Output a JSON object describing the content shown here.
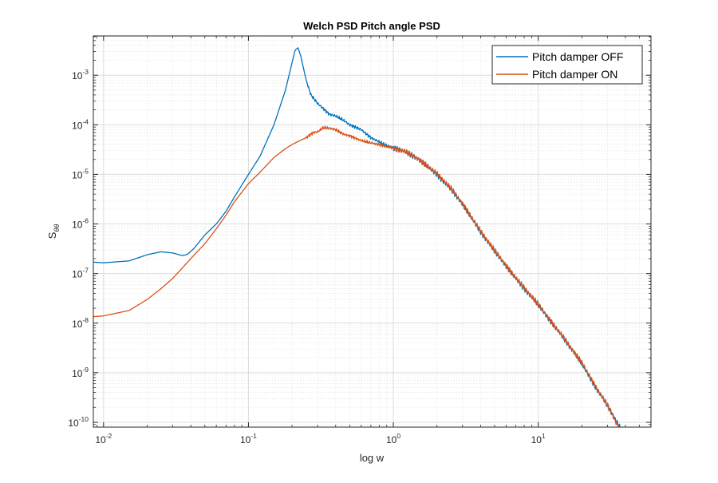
{
  "chart_data": {
    "type": "line",
    "title": "Welch PSD Pitch angle PSD",
    "xlabel": "log w",
    "ylabel_main": "S",
    "ylabel_sub": "θθ",
    "xscale": "log",
    "yscale": "log",
    "xlim": [
      0.0085,
      60
    ],
    "ylim": [
      8e-11,
      0.0062
    ],
    "grid": true,
    "minor_grid": true,
    "legend_position": "top-right",
    "x_ticks": [
      {
        "value": 0.01,
        "base": "10",
        "exp": "-2"
      },
      {
        "value": 0.1,
        "base": "10",
        "exp": "-1"
      },
      {
        "value": 1,
        "base": "10",
        "exp": "0"
      },
      {
        "value": 10,
        "base": "10",
        "exp": "1"
      }
    ],
    "y_ticks": [
      {
        "value": 1e-10,
        "base": "10",
        "exp": "-10"
      },
      {
        "value": 1e-09,
        "base": "10",
        "exp": "-9"
      },
      {
        "value": 1e-08,
        "base": "10",
        "exp": "-8"
      },
      {
        "value": 1e-07,
        "base": "10",
        "exp": "-7"
      },
      {
        "value": 1e-06,
        "base": "10",
        "exp": "-6"
      },
      {
        "value": 1e-05,
        "base": "10",
        "exp": "-5"
      },
      {
        "value": 0.0001,
        "base": "10",
        "exp": "-4"
      },
      {
        "value": 0.001,
        "base": "10",
        "exp": "-3"
      }
    ],
    "series": [
      {
        "name": "Pitch damper OFF",
        "color": "#0072BD",
        "x": [
          0.0085,
          0.01,
          0.015,
          0.02,
          0.025,
          0.03,
          0.035,
          0.038,
          0.042,
          0.05,
          0.06,
          0.07,
          0.08,
          0.1,
          0.12,
          0.15,
          0.18,
          0.2,
          0.21,
          0.22,
          0.23,
          0.25,
          0.27,
          0.3,
          0.33,
          0.36,
          0.4,
          0.45,
          0.5,
          0.6,
          0.7,
          0.8,
          0.9,
          1.0,
          1.2,
          1.5,
          2.0,
          2.5,
          3.0,
          4.0,
          5.0,
          7.0,
          10.0,
          15.0,
          20.0,
          25.0,
          30.0,
          35.0,
          40.0
        ],
        "y": [
          1.7e-07,
          1.65e-07,
          1.8e-07,
          2.4e-07,
          2.75e-07,
          2.6e-07,
          2.3e-07,
          2.45e-07,
          3.2e-07,
          6e-07,
          1e-06,
          1.8e-06,
          3.5e-06,
          1e-05,
          2.3e-05,
          0.0001,
          0.0005,
          0.0018,
          0.0032,
          0.0036,
          0.0024,
          0.0008,
          0.0004,
          0.00027,
          0.00021,
          0.000165,
          0.00015,
          0.000125,
          0.0001,
          8e-05,
          5.5e-05,
          4.5e-05,
          3.8e-05,
          3.5e-05,
          2.9e-05,
          2e-05,
          1e-05,
          5e-06,
          2.5e-06,
          7e-07,
          2.8e-07,
          8e-08,
          2.3e-08,
          5e-09,
          1.5e-09,
          5e-10,
          2.2e-10,
          1e-10,
          5e-11
        ]
      },
      {
        "name": "Pitch damper ON",
        "color": "#D95319",
        "x": [
          0.0085,
          0.01,
          0.015,
          0.02,
          0.025,
          0.03,
          0.035,
          0.04,
          0.05,
          0.06,
          0.07,
          0.08,
          0.1,
          0.12,
          0.15,
          0.18,
          0.2,
          0.22,
          0.25,
          0.28,
          0.3,
          0.33,
          0.36,
          0.4,
          0.45,
          0.5,
          0.6,
          0.7,
          0.8,
          0.9,
          1.0,
          1.2,
          1.5,
          2.0,
          2.5,
          3.0,
          4.0,
          5.0,
          7.0,
          10.0,
          15.0,
          20.0,
          25.0,
          30.0,
          35.0,
          40.0
        ],
        "y": [
          1.35e-08,
          1.4e-08,
          1.8e-08,
          3e-08,
          5e-08,
          8e-08,
          1.3e-07,
          2e-07,
          4e-07,
          8e-07,
          1.5e-06,
          2.8e-06,
          6.5e-06,
          1.1e-05,
          2.2e-05,
          3.3e-05,
          4e-05,
          4.6e-05,
          5.5e-05,
          7e-05,
          7.2e-05,
          8.8e-05,
          8.5e-05,
          8e-05,
          6.5e-05,
          6e-05,
          4.8e-05,
          4.3e-05,
          4e-05,
          3.6e-05,
          3.4e-05,
          2.9e-05,
          2e-05,
          1.05e-05,
          5.2e-06,
          2.6e-06,
          7.2e-07,
          2.9e-07,
          8.2e-08,
          2.4e-08,
          5e-09,
          1.6e-09,
          5.2e-10,
          2.2e-10,
          9e-11,
          5e-11
        ]
      }
    ]
  }
}
